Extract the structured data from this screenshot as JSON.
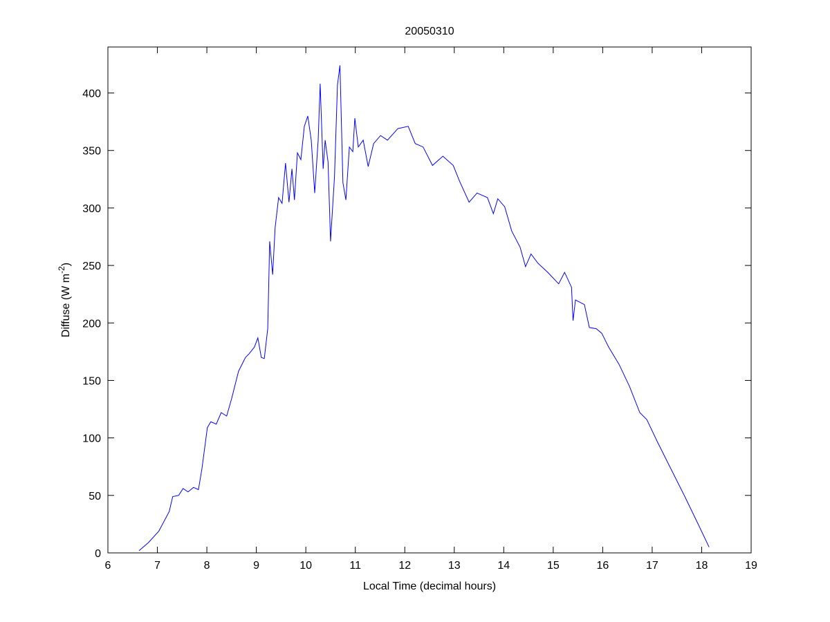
{
  "chart_data": {
    "type": "line",
    "title": "20050310",
    "xlabel": "Local Time (decimal hours)",
    "ylabel_main": "Diffuse (W m",
    "ylabel_sup": "-2",
    "ylabel_close": ")",
    "xlim": [
      6,
      19
    ],
    "ylim": [
      0,
      440
    ],
    "xticks": [
      6,
      7,
      8,
      9,
      10,
      11,
      12,
      13,
      14,
      15,
      16,
      17,
      18,
      19
    ],
    "yticks": [
      0,
      50,
      100,
      150,
      200,
      250,
      300,
      350,
      400
    ],
    "grid": false,
    "line_color": "#0000ff",
    "series": [
      {
        "x": [
          6.63,
          6.82,
          7.03,
          7.24,
          7.31,
          7.43,
          7.52,
          7.62,
          7.73,
          7.83,
          7.9,
          8.01,
          8.08,
          8.19,
          8.29,
          8.4,
          8.5,
          8.64,
          8.78,
          8.85,
          8.96,
          9.03,
          9.1,
          9.16,
          9.23,
          9.27,
          9.33,
          9.38,
          9.45,
          9.52,
          9.59,
          9.66,
          9.72,
          9.77,
          9.83,
          9.9,
          9.97,
          10.04,
          10.11,
          10.18,
          10.25,
          10.29,
          10.35,
          10.39,
          10.45,
          10.5,
          10.58,
          10.64,
          10.69,
          10.75,
          10.81,
          10.88,
          10.95,
          10.99,
          11.06,
          11.16,
          11.26,
          11.37,
          11.51,
          11.65,
          11.86,
          12.07,
          12.21,
          12.37,
          12.56,
          12.77,
          12.98,
          13.11,
          13.3,
          13.46,
          13.67,
          13.79,
          13.88,
          14.02,
          14.16,
          14.33,
          14.44,
          14.55,
          14.69,
          14.89,
          15.11,
          15.23,
          15.37,
          15.4,
          15.45,
          15.63,
          15.73,
          15.87,
          15.98,
          16.12,
          16.33,
          16.54,
          16.75,
          16.89,
          17.1,
          17.38,
          17.66,
          17.94,
          18.15
        ],
        "y": [
          2,
          9,
          19,
          36,
          49,
          50,
          56,
          53,
          57,
          55,
          73,
          109,
          114,
          112,
          122,
          119,
          134,
          158,
          170,
          173,
          179,
          187,
          170,
          169,
          195,
          271,
          242,
          283,
          309,
          304,
          339,
          305,
          334,
          307,
          348,
          342,
          371,
          380,
          359,
          313,
          359,
          408,
          334,
          359,
          340,
          271,
          327,
          407,
          424,
          322,
          307,
          353,
          349,
          378,
          353,
          359,
          336,
          356,
          363,
          359,
          369,
          371,
          356,
          353,
          337,
          345,
          337,
          323,
          305,
          313,
          309,
          295,
          308,
          301,
          280,
          266,
          249,
          260,
          252,
          244,
          234,
          244,
          231,
          202,
          220,
          216,
          196,
          195,
          191,
          179,
          164,
          145,
          122,
          116,
          97,
          73,
          49,
          24,
          5
        ]
      }
    ]
  }
}
